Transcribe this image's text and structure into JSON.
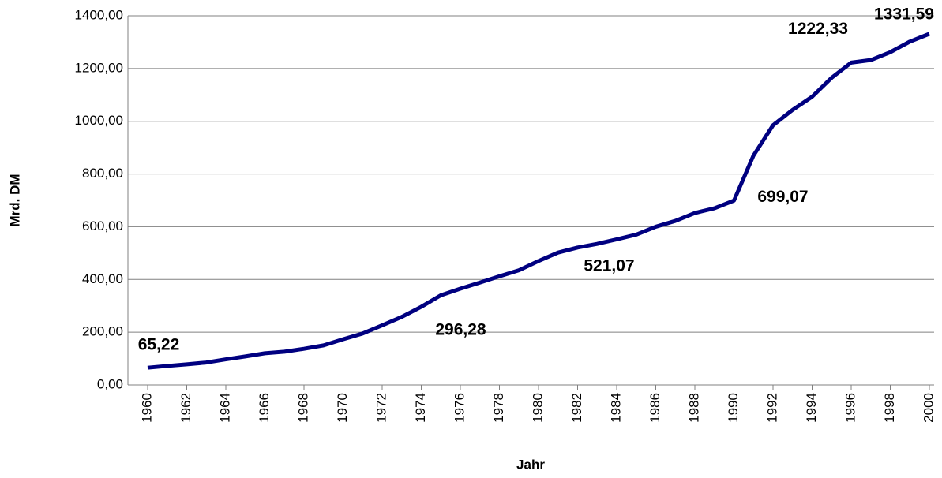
{
  "chart_data": {
    "type": "line",
    "x_label": "Jahr",
    "y_label": "Mrd. DM",
    "x": [
      1960,
      1961,
      1962,
      1963,
      1964,
      1965,
      1966,
      1967,
      1968,
      1969,
      1970,
      1971,
      1972,
      1973,
      1974,
      1975,
      1976,
      1977,
      1978,
      1979,
      1980,
      1981,
      1982,
      1983,
      1984,
      1985,
      1986,
      1987,
      1988,
      1989,
      1990,
      1991,
      1992,
      1993,
      1994,
      1995,
      1996,
      1997,
      1998,
      1999,
      2000
    ],
    "series": [
      {
        "color": "#000080",
        "values": [
          65.22,
          72,
          78,
          85,
          97,
          108,
          120,
          126,
          137,
          150,
          173,
          195,
          226,
          258,
          296.28,
          340,
          365,
          388,
          412,
          435,
          470,
          502,
          521.07,
          535,
          552,
          570,
          600,
          622,
          652,
          670,
          699.07,
          870,
          985,
          1043,
          1093,
          1165,
          1222.33,
          1232,
          1262,
          1302,
          1331.59
        ],
        "value_labels": [
          "65,22",
          null,
          null,
          null,
          null,
          null,
          null,
          null,
          null,
          null,
          null,
          null,
          null,
          null,
          "296,28",
          null,
          null,
          null,
          null,
          null,
          null,
          null,
          "521,07",
          null,
          null,
          null,
          null,
          null,
          null,
          null,
          "699,07",
          null,
          null,
          null,
          null,
          null,
          "1222,33",
          null,
          null,
          null,
          "1331,59"
        ]
      }
    ],
    "xlim": [
      1960,
      2000
    ],
    "xticks": [
      1960,
      1962,
      1964,
      1966,
      1968,
      1970,
      1972,
      1974,
      1976,
      1978,
      1980,
      1982,
      1984,
      1986,
      1988,
      1990,
      1992,
      1994,
      1996,
      1998,
      2000
    ],
    "ylim": [
      0,
      1400
    ],
    "yticks": [
      {
        "value": 0,
        "label": "0,00"
      },
      {
        "value": 200,
        "label": "200,00"
      },
      {
        "value": 400,
        "label": "400,00"
      },
      {
        "value": 600,
        "label": "600,00"
      },
      {
        "value": 800,
        "label": "800,00"
      },
      {
        "value": 1000,
        "label": "1000,00"
      },
      {
        "value": 1200,
        "label": "1200,00"
      },
      {
        "value": 1400,
        "label": "1400,00"
      }
    ],
    "grid": true
  }
}
